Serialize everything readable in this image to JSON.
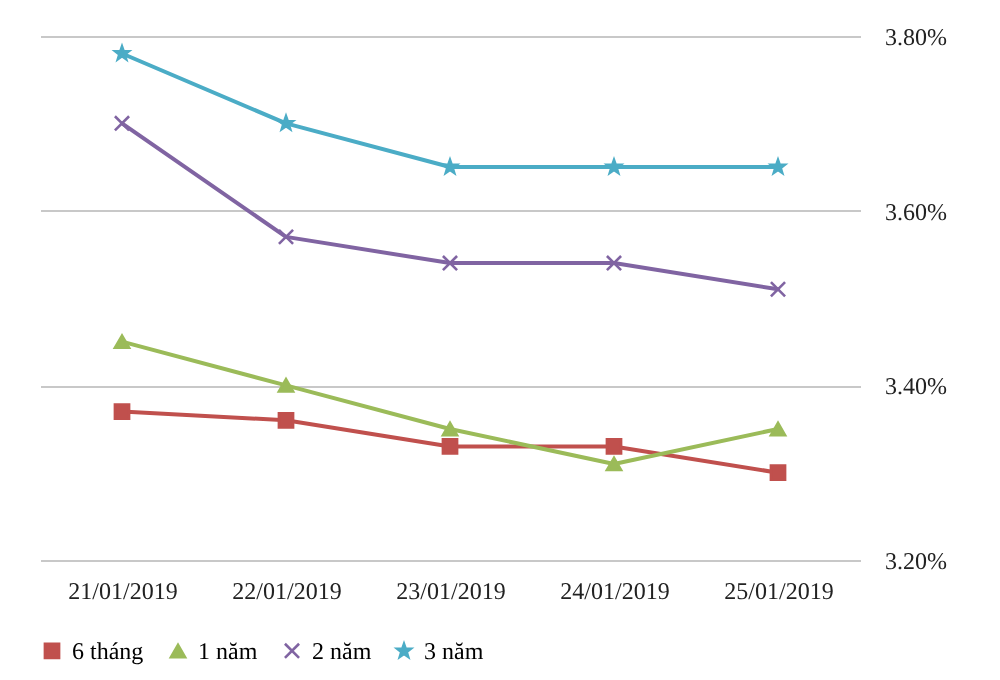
{
  "chart_data": {
    "type": "line",
    "categories": [
      "21/01/2019",
      "22/01/2019",
      "23/01/2019",
      "24/01/2019",
      "25/01/2019"
    ],
    "series": [
      {
        "name": "6 tháng",
        "color": "#c0504d",
        "marker": "square",
        "values": [
          3.37,
          3.36,
          3.33,
          3.33,
          3.3
        ]
      },
      {
        "name": "1 năm",
        "color": "#9bbb59",
        "marker": "triangle",
        "values": [
          3.45,
          3.4,
          3.35,
          3.31,
          3.35
        ]
      },
      {
        "name": "2 năm",
        "color": "#8064a2",
        "marker": "cross",
        "values": [
          3.7,
          3.57,
          3.54,
          3.54,
          3.51
        ]
      },
      {
        "name": "3 năm",
        "color": "#4bacc6",
        "marker": "star",
        "values": [
          3.78,
          3.7,
          3.65,
          3.65,
          3.65
        ]
      }
    ],
    "ylim": [
      3.2,
      3.8
    ],
    "yticks": [
      {
        "value": 3.2,
        "label": "3.20%"
      },
      {
        "value": 3.4,
        "label": "3.40%"
      },
      {
        "value": 3.6,
        "label": "3.60%"
      },
      {
        "value": 3.8,
        "label": "3.80%"
      }
    ],
    "grid": "y",
    "legend": "bottom"
  }
}
